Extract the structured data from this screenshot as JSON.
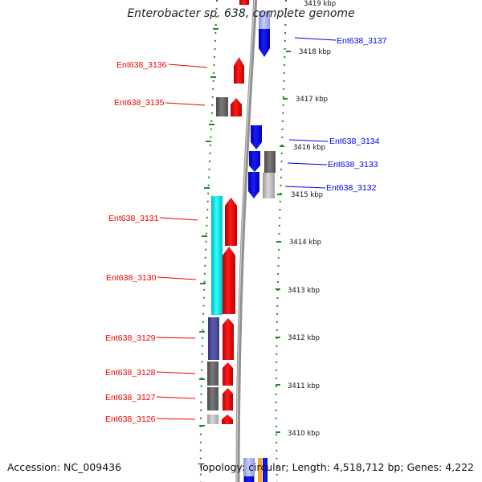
{
  "header": {
    "title": "Enterobacter sp. 638, complete genome"
  },
  "footer": {
    "accession": "Accession: NC_009436",
    "topology": "Topology: circular; Length: 4,518,712 bp; Genes: 4,222"
  },
  "axis": {
    "unit": "kbp",
    "ticks": [
      "3419 kbp",
      "3418 kbp",
      "3417 kbp",
      "3416 kbp",
      "3415 kbp",
      "3414 kbp",
      "3413 kbp",
      "3412 kbp",
      "3411 kbp",
      "3410 kbp"
    ]
  },
  "genes": {
    "reverse_strand": [
      "Ent638_3136",
      "Ent638_3135",
      "Ent638_3131",
      "Ent638_3130",
      "Ent638_3129",
      "Ent638_3128",
      "Ent638_3127",
      "Ent638_3126"
    ],
    "forward_strand": [
      "Ent638_3137",
      "Ent638_3134",
      "Ent638_3133",
      "Ent638_3132"
    ]
  },
  "colors": {
    "reverse_strand": "#ee0000",
    "forward_strand": "#0000ee",
    "backbone": "#888888",
    "ticks": "#228b22",
    "cog_cyan": "#00e5ee",
    "cog_purple": "#4b4b9e",
    "cog_gray": "#666666",
    "cog_lightgray": "#bbbbbb",
    "cog_lightblue": "#aab2ee",
    "cog_orange": "#f5a623"
  }
}
